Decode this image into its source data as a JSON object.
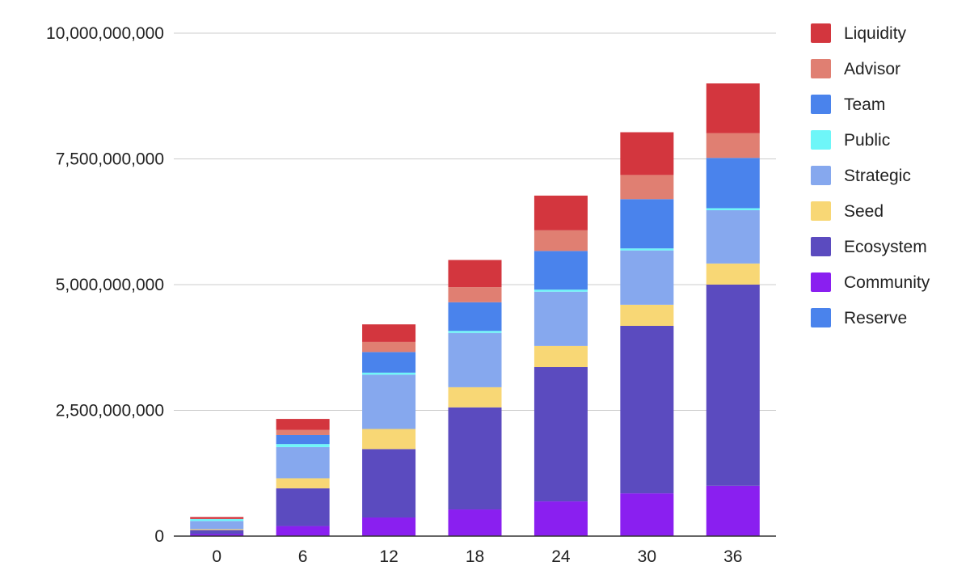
{
  "chart_data": {
    "type": "bar",
    "stacked": true,
    "title": "",
    "xlabel": "",
    "ylabel": "",
    "ylim": [
      0,
      10000000000
    ],
    "yticks": [
      0,
      2500000000,
      5000000000,
      7500000000,
      10000000000
    ],
    "ytick_labels": [
      "0",
      "2,500,000,000",
      "5,000,000,000",
      "7,500,000,000",
      "10,000,000,000"
    ],
    "grid": true,
    "legend_position": "right",
    "categories": [
      "0",
      "6",
      "12",
      "18",
      "24",
      "30",
      "36"
    ],
    "series": [
      {
        "name": "Reserve",
        "color": "#4a83ec",
        "values": [
          0,
          0,
          0,
          0,
          0,
          0,
          0
        ]
      },
      {
        "name": "Community",
        "color": "#8a1ff0",
        "values": [
          40000000,
          200000000,
          370000000,
          530000000,
          690000000,
          850000000,
          1000000000
        ]
      },
      {
        "name": "Ecosystem",
        "color": "#5b4bbf",
        "values": [
          80000000,
          750000000,
          1360000000,
          2030000000,
          2670000000,
          3330000000,
          4000000000
        ]
      },
      {
        "name": "Seed",
        "color": "#f8d775",
        "values": [
          20000000,
          200000000,
          400000000,
          400000000,
          420000000,
          420000000,
          420000000
        ]
      },
      {
        "name": "Strategic",
        "color": "#86a8ee",
        "values": [
          160000000,
          620000000,
          1080000000,
          1080000000,
          1080000000,
          1080000000,
          1060000000
        ]
      },
      {
        "name": "Public",
        "color": "#6ef6f8",
        "values": [
          40000000,
          60000000,
          40000000,
          40000000,
          40000000,
          40000000,
          40000000
        ]
      },
      {
        "name": "Team",
        "color": "#4a83ec",
        "values": [
          0,
          180000000,
          410000000,
          570000000,
          770000000,
          980000000,
          1000000000
        ]
      },
      {
        "name": "Advisor",
        "color": "#e07f72",
        "values": [
          0,
          100000000,
          200000000,
          300000000,
          410000000,
          480000000,
          490000000
        ]
      },
      {
        "name": "Liquidity",
        "color": "#d3363e",
        "values": [
          40000000,
          220000000,
          350000000,
          540000000,
          690000000,
          850000000,
          990000000
        ]
      }
    ],
    "legend_order": [
      "Liquidity",
      "Advisor",
      "Team",
      "Public",
      "Strategic",
      "Seed",
      "Ecosystem",
      "Community",
      "Reserve"
    ]
  }
}
